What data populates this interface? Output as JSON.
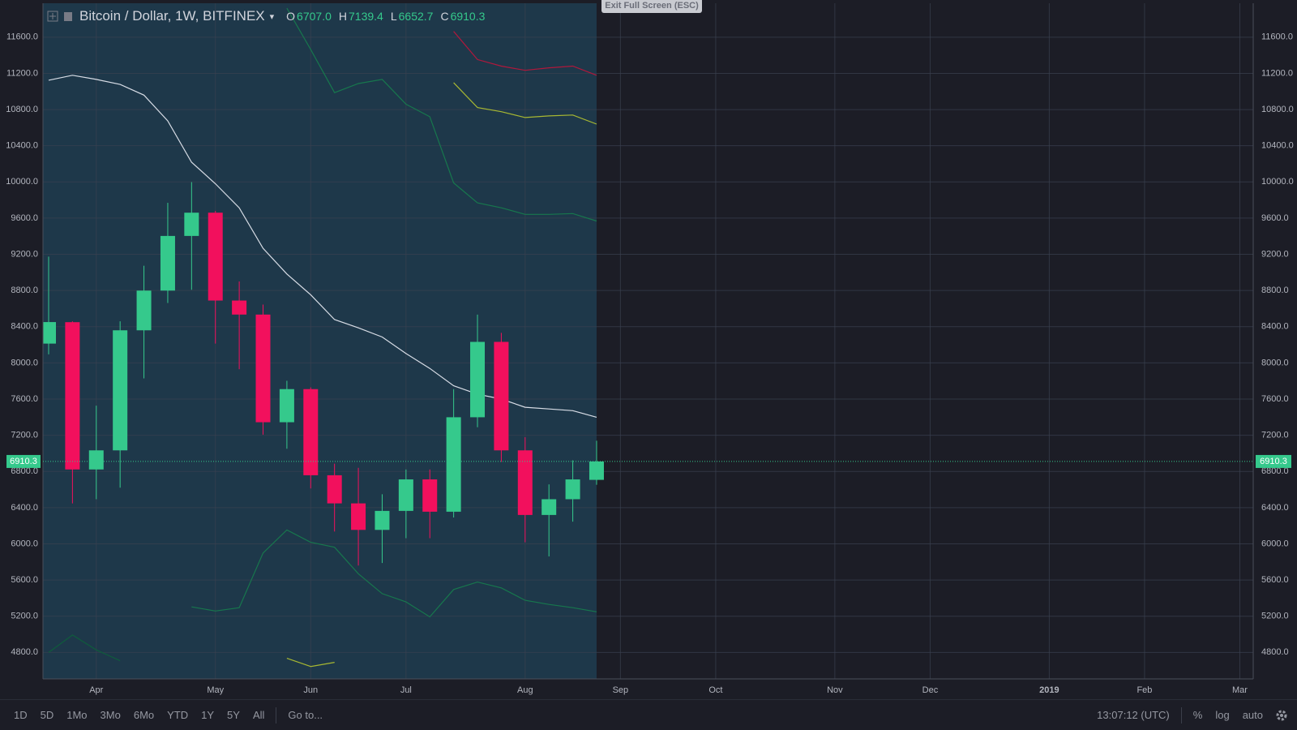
{
  "chart_data": {
    "type": "candlestick",
    "categories": [
      null,
      null,
      "Apr",
      null,
      null,
      null,
      null,
      "May",
      null,
      null,
      null,
      "Jun",
      null,
      null,
      null,
      "Jul",
      null,
      null,
      null,
      null,
      "Aug",
      null,
      null,
      null,
      "Sep",
      null,
      null,
      null,
      "Oct",
      null,
      null,
      null,
      null,
      "Nov",
      null,
      null,
      null,
      "Dec",
      null,
      null,
      null,
      null,
      "2019",
      null,
      null,
      null,
      "Feb",
      null,
      null,
      null,
      "Mar"
    ],
    "candles": {
      "up_color": "#35c98c",
      "down_color": "#f2105d",
      "open": [
        8213,
        8450,
        6822,
        7033,
        8360,
        8799,
        9403,
        9660,
        8689,
        8534,
        7344,
        7710,
        6758,
        6447,
        6154,
        6364,
        6712,
        6355,
        7399,
        8232,
        7033,
        6319,
        6493,
        6707.0,
        null,
        null,
        null,
        null,
        null,
        null,
        null,
        null,
        null,
        null,
        null,
        null,
        null,
        null,
        null,
        null,
        null,
        null,
        null,
        null,
        null,
        null,
        null,
        null,
        null,
        null,
        null
      ],
      "high": [
        9174,
        8460,
        7527,
        8460,
        9074,
        9769,
        9998,
        9680,
        8900,
        8644,
        7802,
        7730,
        6886,
        6840,
        6548,
        6822,
        6822,
        7710,
        8534,
        8332,
        7179,
        6657,
        6923,
        7139.4,
        null,
        null,
        null,
        null,
        null,
        null,
        null,
        null,
        null,
        null,
        null,
        null,
        null,
        null,
        null,
        null,
        null,
        null,
        null,
        null,
        null,
        null,
        null,
        null,
        null,
        null,
        null
      ],
      "low": [
        8094,
        6447,
        6493,
        6620,
        7829,
        8662,
        8808,
        8213,
        7930,
        7207,
        7051,
        6612,
        6136,
        5760,
        5788,
        6062,
        6062,
        6291,
        7289,
        6905,
        6017,
        5861,
        6245,
        6652.7,
        null,
        null,
        null,
        null,
        null,
        null,
        null,
        null,
        null,
        null,
        null,
        null,
        null,
        null,
        null,
        null,
        null,
        null,
        null,
        null,
        null,
        null,
        null,
        null,
        null,
        null,
        null
      ],
      "close": [
        8451,
        6822,
        7033,
        8360,
        8799,
        9403,
        9660,
        8689,
        8534,
        7344,
        7710,
        6758,
        6447,
        6154,
        6364,
        6712,
        6355,
        7399,
        8232,
        7033,
        6319,
        6493,
        6712,
        6910.3,
        null,
        null,
        null,
        null,
        null,
        null,
        null,
        null,
        null,
        null,
        null,
        null,
        null,
        null,
        null,
        null,
        null,
        null,
        null,
        null,
        null,
        null,
        null,
        null,
        null,
        null,
        null
      ]
    },
    "lines": [
      {
        "color": "#d8dde6",
        "values": [
          11124,
          11179,
          11133,
          11078,
          10959,
          10675,
          10218,
          9980,
          9714,
          9266,
          8982,
          8753,
          8479,
          8387,
          8286,
          8103,
          7939,
          7747,
          7655,
          7600,
          7509,
          7491,
          7472,
          7399,
          null,
          null,
          null,
          null,
          null,
          null,
          null,
          null,
          null,
          null,
          null,
          null,
          null,
          null,
          null,
          null,
          null,
          null,
          null,
          null,
          null,
          null,
          null,
          null,
          null,
          null,
          null
        ]
      },
      {
        "color": "#17774d",
        "values": [
          null,
          null,
          null,
          null,
          null,
          null,
          null,
          null,
          null,
          null,
          11920,
          11463,
          10987,
          11087,
          11133,
          10859,
          10721,
          9989,
          9769,
          9714,
          9641,
          9641,
          9650,
          9568,
          null,
          null,
          null,
          null,
          null,
          null,
          null,
          null,
          null,
          null,
          null,
          null,
          null,
          null,
          null,
          null,
          null,
          null,
          null,
          null,
          null,
          null,
          null,
          null,
          null,
          null,
          null
        ]
      },
      {
        "color": "#17774d",
        "values": [
          null,
          null,
          null,
          null,
          null,
          null,
          5303,
          5257,
          5294,
          5898,
          6154,
          6017,
          5962,
          5669,
          5449,
          5358,
          5193,
          5495,
          5577,
          5513,
          5376,
          5330,
          5294,
          5248,
          null,
          null,
          null,
          null,
          null,
          null,
          null,
          null,
          null,
          null,
          null,
          null,
          null,
          null,
          null,
          null,
          null,
          null,
          null,
          null,
          null,
          null,
          null,
          null,
          null,
          null,
          null
        ]
      },
      {
        "color": "#0f5c3c",
        "values": [
          4799,
          4992,
          4827,
          4708,
          null,
          null,
          null,
          null,
          null,
          null,
          null,
          null,
          null,
          null,
          null,
          null,
          null,
          null,
          null,
          null,
          null,
          null,
          null,
          null,
          null,
          null,
          null,
          null,
          null,
          null,
          null,
          null,
          null,
          null,
          null,
          null,
          null,
          null,
          null,
          null,
          null,
          null,
          null,
          null,
          null,
          null,
          null,
          null,
          null,
          null,
          null
        ]
      },
      {
        "color": "#a8b832",
        "values": [
          null,
          null,
          null,
          null,
          null,
          null,
          null,
          null,
          null,
          null,
          null,
          null,
          null,
          null,
          null,
          null,
          null,
          11097,
          10822,
          10776,
          10712,
          10730,
          10740,
          10639,
          null,
          null,
          null,
          null,
          null,
          null,
          null,
          null,
          null,
          null,
          null,
          null,
          null,
          null,
          null,
          null,
          null,
          null,
          null,
          null,
          null,
          null,
          null,
          null,
          null,
          null,
          null
        ]
      },
      {
        "color": "#b0183c",
        "values": [
          null,
          null,
          null,
          null,
          null,
          null,
          null,
          null,
          null,
          null,
          null,
          null,
          null,
          null,
          null,
          null,
          null,
          11664,
          11353,
          11280,
          11234,
          11261,
          11280,
          11179,
          null,
          null,
          null,
          null,
          null,
          null,
          null,
          null,
          null,
          null,
          null,
          null,
          null,
          null,
          null,
          null,
          null,
          null,
          null,
          null,
          null,
          null,
          null,
          null,
          null,
          null,
          null
        ]
      },
      {
        "color": "#a8b832",
        "values": [
          null,
          null,
          null,
          null,
          null,
          null,
          null,
          null,
          null,
          null,
          4735,
          4644,
          4690,
          null,
          null,
          null,
          null,
          null,
          null,
          null,
          null,
          null,
          null,
          null,
          null,
          null,
          null,
          null,
          null,
          null,
          null,
          null,
          null,
          null,
          null,
          null,
          null,
          null,
          null,
          null,
          null,
          null,
          null,
          null,
          null,
          null,
          null,
          null,
          null,
          null,
          null
        ]
      }
    ],
    "last_price": 6910.3,
    "last_price_color": "#35c98c",
    "ylim": [
      4507,
      11975
    ],
    "yticks": [
      {
        "value": 4800,
        "label": "4800.0"
      },
      {
        "value": 5200,
        "label": "5200.0"
      },
      {
        "value": 5600,
        "label": "5600.0"
      },
      {
        "value": 6000,
        "label": "6000.0"
      },
      {
        "value": 6400,
        "label": "6400.0"
      },
      {
        "value": 6800,
        "label": "6800.0"
      },
      {
        "value": 7200,
        "label": "7200.0"
      },
      {
        "value": 7600,
        "label": "7600.0"
      },
      {
        "value": 8000,
        "label": "8000.0"
      },
      {
        "value": 8400,
        "label": "8400.0"
      },
      {
        "value": 8800,
        "label": "8800.0"
      },
      {
        "value": 9200,
        "label": "9200.0"
      },
      {
        "value": 9600,
        "label": "9600.0"
      },
      {
        "value": 10000,
        "label": "10000.0"
      },
      {
        "value": 10400,
        "label": "10400.0"
      },
      {
        "value": 10800,
        "label": "10800.0"
      },
      {
        "value": 11200,
        "label": "11200.0"
      },
      {
        "value": 11600,
        "label": "11600.0"
      }
    ],
    "grid": true
  },
  "header": {
    "symbol": "Bitcoin / Dollar, 1W, BITFINEX",
    "fields": [
      {
        "key": "O",
        "value": "6707.0"
      },
      {
        "key": "H",
        "value": "7139.4"
      },
      {
        "key": "L",
        "value": "6652.7"
      },
      {
        "key": "C",
        "value": "6910.3"
      }
    ]
  },
  "exit_button": "Exit Full Screen (ESC)",
  "toolbar": {
    "ranges": [
      "1D",
      "5D",
      "1Mo",
      "3Mo",
      "6Mo",
      "YTD",
      "1Y",
      "5Y",
      "All"
    ],
    "goto": "Go to...",
    "clock": "13:07:12 (UTC)",
    "options": [
      "%",
      "log",
      "auto"
    ]
  }
}
